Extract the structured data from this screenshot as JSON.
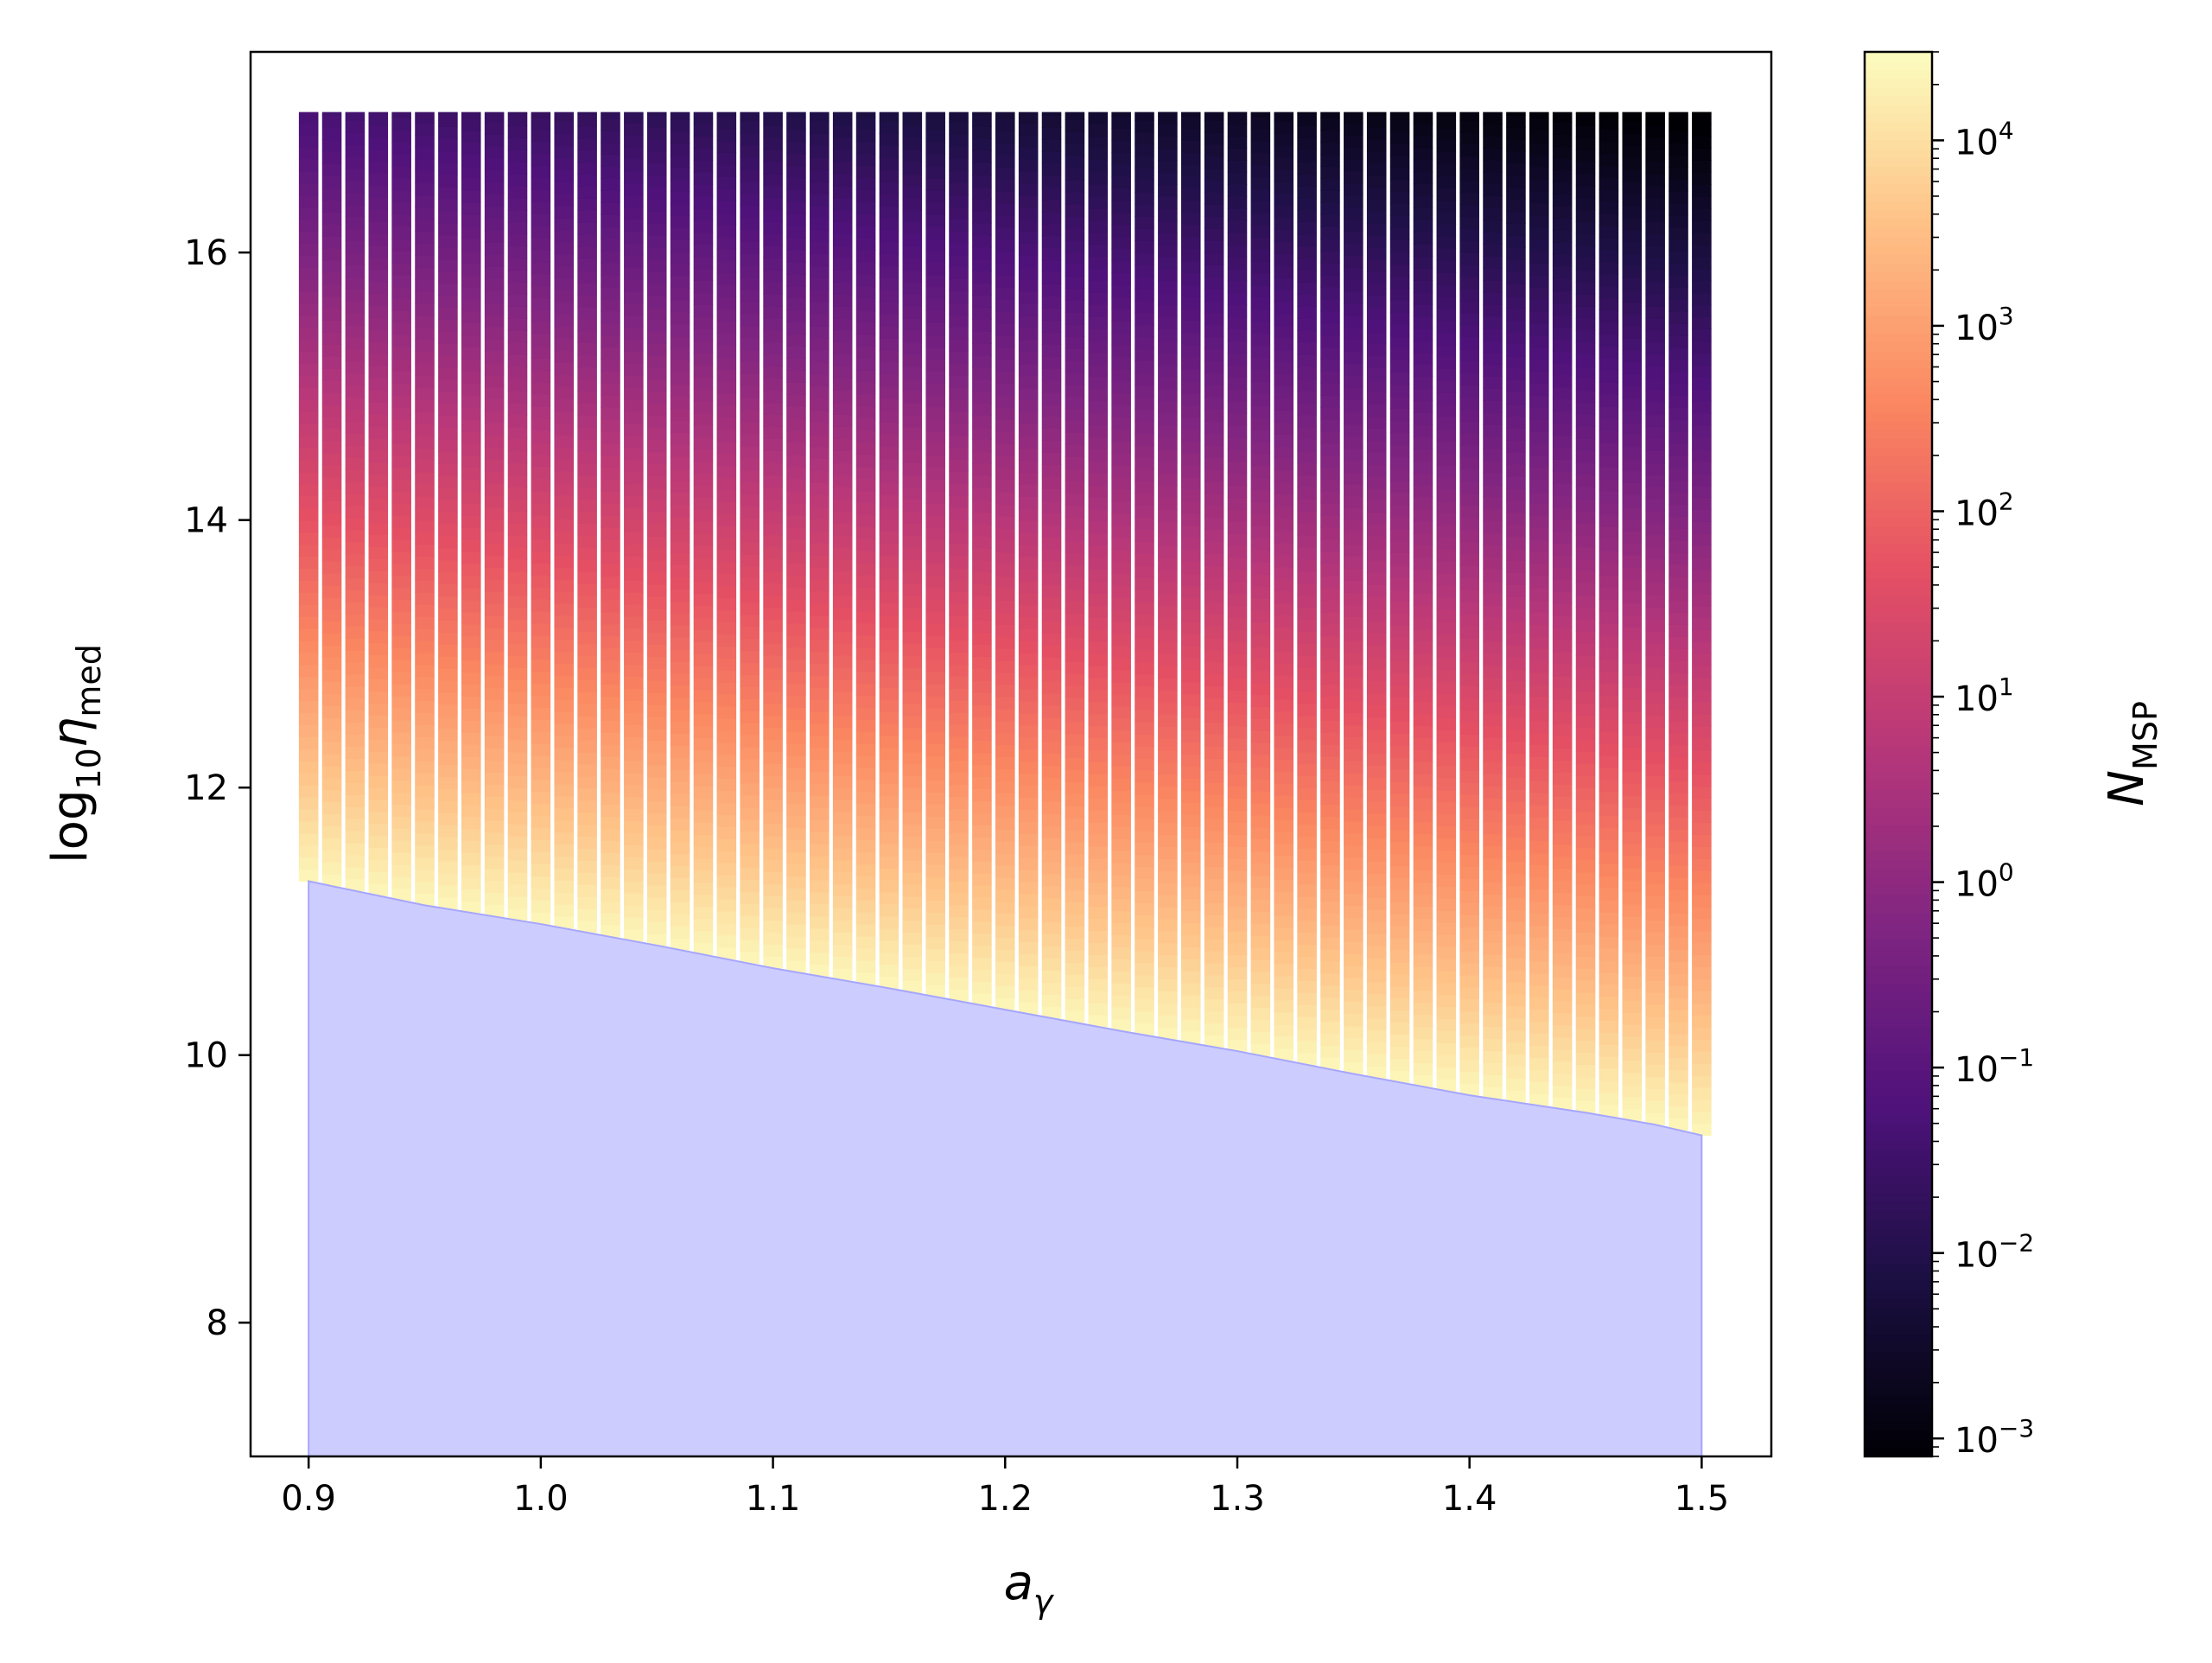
{
  "chart_data": {
    "type": "scatter",
    "title": "",
    "xlabel": "a",
    "xlabel_sub": "γ",
    "ylabel": "log",
    "ylabel_sub": "10",
    "ylabel_var": "η",
    "ylabel_var_sub": "med",
    "xlim": [
      0.875,
      1.53
    ],
    "ylim": [
      7.0,
      17.5
    ],
    "x_ticks": [
      0.9,
      1.0,
      1.1,
      1.2,
      1.3,
      1.4,
      1.5
    ],
    "x_tick_labels": [
      "0.9",
      "1.0",
      "1.1",
      "1.2",
      "1.3",
      "1.4",
      "1.5"
    ],
    "y_ticks": [
      8,
      10,
      12,
      14,
      16
    ],
    "y_tick_labels": [
      "8",
      "10",
      "12",
      "14",
      "16"
    ],
    "grid": false,
    "x_grid": {
      "start": 0.9,
      "end": 1.5,
      "count": 61
    },
    "y_top": 17.05,
    "color_scale": {
      "label": "N",
      "label_sub": "MSP",
      "colormap": "magma",
      "log_scale": true,
      "range": [
        0.0008,
        30000
      ],
      "ticks": [
        0.001,
        0.01,
        0.1,
        1,
        10,
        100,
        1000,
        10000
      ],
      "tick_labels": [
        {
          "base": "10",
          "exp": "−3"
        },
        {
          "base": "10",
          "exp": "−2"
        },
        {
          "base": "10",
          "exp": "−1"
        },
        {
          "base": "10",
          "exp": "0"
        },
        {
          "base": "10",
          "exp": "1"
        },
        {
          "base": "10",
          "exp": "2"
        },
        {
          "base": "10",
          "exp": "3"
        },
        {
          "base": "10",
          "exp": "4"
        }
      ]
    },
    "color_model": {
      "log10N_at_boundary": 4.4,
      "slope_per_dex": 1.0
    },
    "excluded_region": {
      "color": "#ccccff",
      "edge_color": "#a6a6ff",
      "boundary": {
        "x": [
          0.9,
          0.95,
          1.0,
          1.05,
          1.1,
          1.15,
          1.2,
          1.25,
          1.3,
          1.35,
          1.4,
          1.45,
          1.48,
          1.5
        ],
        "y": [
          11.3,
          11.12,
          10.98,
          10.82,
          10.65,
          10.5,
          10.34,
          10.18,
          10.03,
          9.86,
          9.7,
          9.57,
          9.48,
          9.4
        ]
      }
    }
  }
}
